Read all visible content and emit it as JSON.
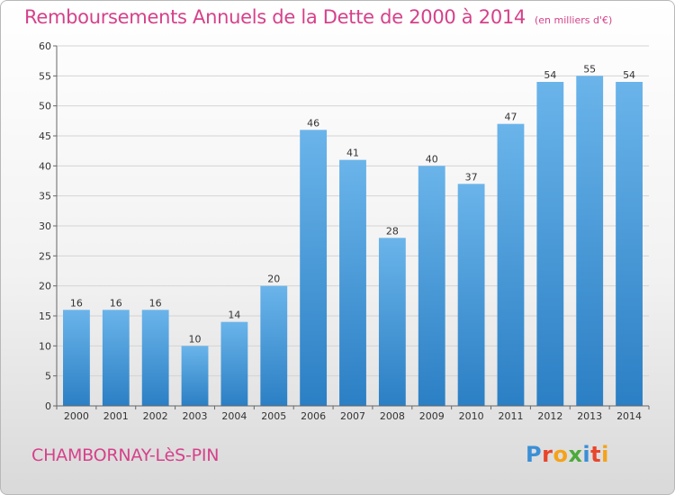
{
  "title": "Remboursements Annuels de la Dette de 2000 à 2014",
  "unit": "(en milliers d'€)",
  "commune": "CHAMBORNAY-LèS-PIN",
  "logo": {
    "text": "Proxiti",
    "colors": [
      "#3a8fd6",
      "#e8462c",
      "#f5a21a",
      "#4caa3a",
      "#3a8fd6",
      "#e8462c",
      "#f5a21a"
    ]
  },
  "colors": {
    "bar_light": "#6ab4ea",
    "bar_dark": "#2b7fc4",
    "title": "#d6418a",
    "grid": "#d4d4d4"
  },
  "chart_data": {
    "type": "bar",
    "categories": [
      "2000",
      "2001",
      "2002",
      "2003",
      "2004",
      "2005",
      "2006",
      "2007",
      "2008",
      "2009",
      "2010",
      "2011",
      "2012",
      "2013",
      "2014"
    ],
    "values": [
      16,
      16,
      16,
      10,
      14,
      20,
      46,
      41,
      28,
      40,
      37,
      47,
      54,
      55,
      54
    ],
    "yticks": [
      0,
      5,
      10,
      15,
      20,
      25,
      30,
      35,
      40,
      45,
      50,
      55,
      60
    ],
    "ylim": [
      0,
      60
    ],
    "grid": true,
    "data_labels": true
  }
}
